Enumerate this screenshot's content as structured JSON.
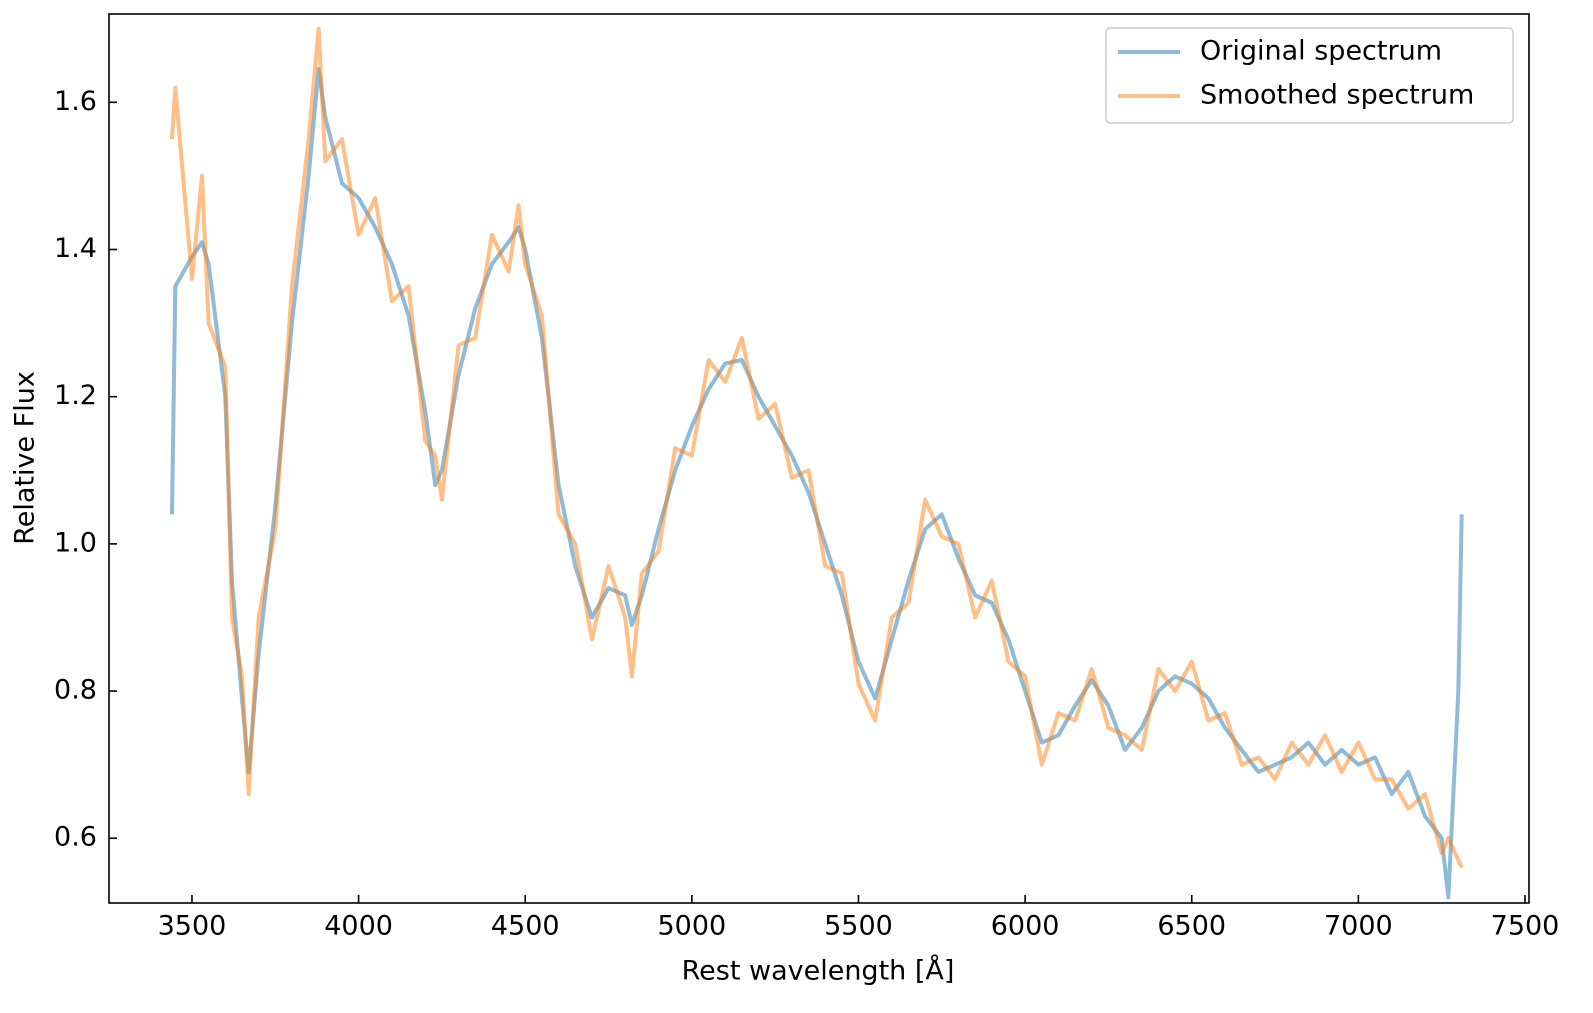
{
  "chart_data": {
    "type": "line",
    "xlabel": "Rest wavelength [Å]",
    "ylabel": "Relative Flux",
    "x": [
      3440,
      3450,
      3500,
      3530,
      3550,
      3600,
      3620,
      3650,
      3670,
      3700,
      3750,
      3800,
      3850,
      3880,
      3900,
      3950,
      4000,
      4050,
      4100,
      4150,
      4200,
      4230,
      4250,
      4300,
      4350,
      4400,
      4450,
      4480,
      4500,
      4550,
      4600,
      4650,
      4700,
      4750,
      4800,
      4820,
      4850,
      4900,
      4950,
      5000,
      5050,
      5100,
      5150,
      5200,
      5250,
      5300,
      5350,
      5400,
      5450,
      5500,
      5550,
      5600,
      5650,
      5700,
      5750,
      5800,
      5850,
      5900,
      5950,
      6000,
      6050,
      6100,
      6150,
      6200,
      6250,
      6300,
      6350,
      6400,
      6450,
      6500,
      6550,
      6600,
      6650,
      6700,
      6750,
      6800,
      6850,
      6900,
      6950,
      7000,
      7050,
      7100,
      7150,
      7200,
      7250,
      7270,
      7300,
      7310
    ],
    "series": [
      {
        "name": "Original spectrum",
        "color": "#1f77b4",
        "values": [
          1.04,
          1.35,
          1.39,
          1.41,
          1.38,
          1.2,
          0.95,
          0.79,
          0.69,
          0.85,
          1.05,
          1.3,
          1.5,
          1.645,
          1.58,
          1.49,
          1.47,
          1.43,
          1.38,
          1.31,
          1.18,
          1.08,
          1.1,
          1.23,
          1.32,
          1.38,
          1.41,
          1.43,
          1.4,
          1.28,
          1.08,
          0.97,
          0.9,
          0.94,
          0.93,
          0.89,
          0.93,
          1.02,
          1.1,
          1.16,
          1.21,
          1.245,
          1.25,
          1.2,
          1.16,
          1.12,
          1.07,
          1.0,
          0.93,
          0.84,
          0.79,
          0.87,
          0.95,
          1.02,
          1.04,
          0.98,
          0.93,
          0.92,
          0.87,
          0.8,
          0.73,
          0.74,
          0.78,
          0.815,
          0.78,
          0.72,
          0.75,
          0.8,
          0.82,
          0.81,
          0.79,
          0.75,
          0.72,
          0.69,
          0.7,
          0.71,
          0.73,
          0.7,
          0.72,
          0.7,
          0.71,
          0.66,
          0.69,
          0.63,
          0.6,
          0.52,
          0.8,
          1.04
        ]
      },
      {
        "name": "Smoothed spectrum",
        "color": "#ff7f0e",
        "values": [
          1.55,
          1.62,
          1.36,
          1.5,
          1.3,
          1.24,
          0.9,
          0.82,
          0.66,
          0.9,
          1.02,
          1.35,
          1.55,
          1.7,
          1.52,
          1.55,
          1.42,
          1.47,
          1.33,
          1.35,
          1.14,
          1.12,
          1.06,
          1.27,
          1.28,
          1.42,
          1.37,
          1.46,
          1.38,
          1.31,
          1.04,
          1.0,
          0.87,
          0.97,
          0.9,
          0.82,
          0.96,
          0.99,
          1.13,
          1.12,
          1.25,
          1.22,
          1.28,
          1.17,
          1.19,
          1.09,
          1.1,
          0.97,
          0.96,
          0.81,
          0.76,
          0.9,
          0.92,
          1.06,
          1.01,
          1.0,
          0.9,
          0.95,
          0.84,
          0.82,
          0.7,
          0.77,
          0.76,
          0.83,
          0.75,
          0.74,
          0.72,
          0.83,
          0.8,
          0.84,
          0.76,
          0.77,
          0.7,
          0.71,
          0.68,
          0.73,
          0.7,
          0.74,
          0.69,
          0.73,
          0.68,
          0.68,
          0.64,
          0.66,
          0.58,
          0.6,
          0.57,
          0.56
        ]
      }
    ],
    "xlim": [
      3251,
      7512
    ],
    "ylim": [
      0.512,
      1.72
    ],
    "xticks": [
      3500,
      4000,
      4500,
      5000,
      5500,
      6000,
      6500,
      7000,
      7500
    ],
    "yticks": [
      0.6,
      0.8,
      {
        "value": 1.0,
        "label": "1.0"
      },
      1.2,
      1.4,
      1.6
    ],
    "legend": "upper right"
  }
}
